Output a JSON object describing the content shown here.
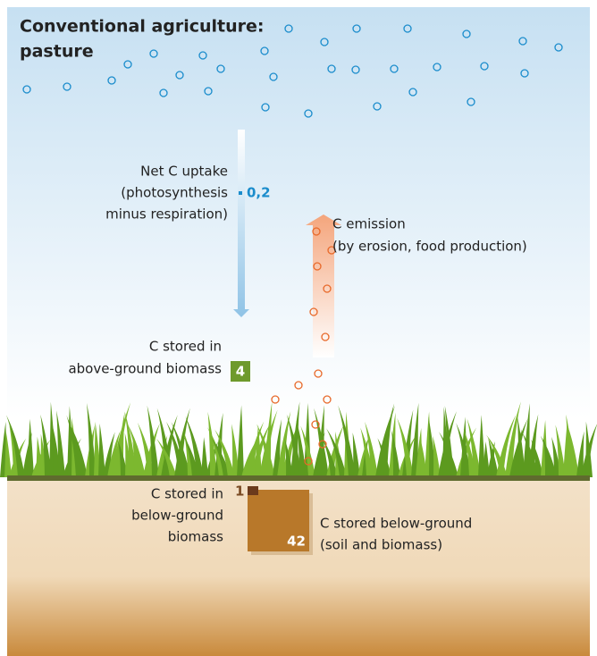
{
  "header": {
    "title": [
      "Conventional agriculture:",
      "pasture"
    ]
  },
  "flows": {
    "uptake": {
      "label": [
        "Net C uptake",
        "(photosynthesis",
        "minus respiration)"
      ],
      "value": "0,2"
    },
    "emission": {
      "label": [
        "C emission",
        "(by erosion, food production)"
      ]
    }
  },
  "stores": {
    "above_ground": {
      "label": [
        "C stored in",
        "above-ground biomass"
      ],
      "value": "4"
    },
    "below_ground_biomass": {
      "label": [
        "C stored in",
        "below-ground",
        "biomass"
      ],
      "value": "1"
    },
    "below_ground_total": {
      "label": [
        "C stored below-ground",
        "(soil and biomass)"
      ],
      "value": "42"
    }
  }
}
